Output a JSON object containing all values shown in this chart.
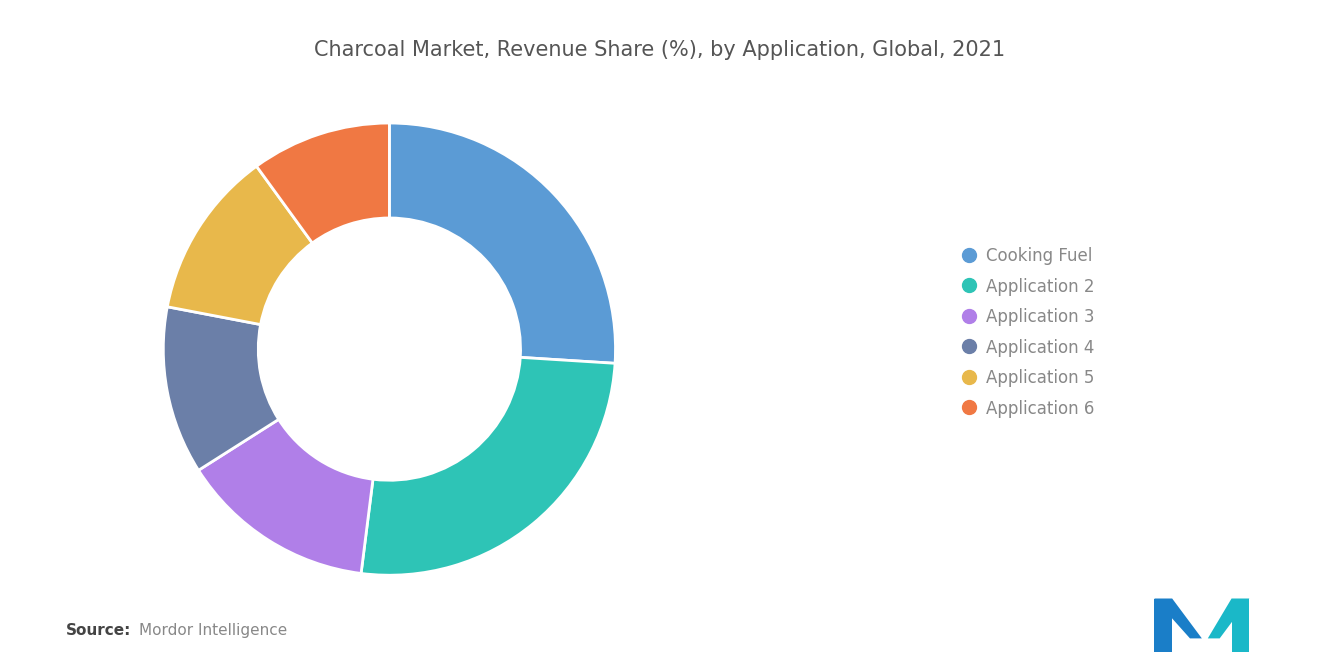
{
  "title": "Charcoal Market, Revenue Share (%), by Application, Global, 2021",
  "labels": [
    "Cooking Fuel",
    "Application 2",
    "Application 3",
    "Application 4",
    "Application 5",
    "Application 6"
  ],
  "values": [
    26,
    26,
    14,
    12,
    12,
    10
  ],
  "colors": [
    "#5B9BD5",
    "#2EC4B6",
    "#B07FE8",
    "#6B7FA8",
    "#E8B84B",
    "#F07843"
  ],
  "source_bold": "Source:",
  "source_text": "Mordor Intelligence",
  "background_color": "#FFFFFF",
  "title_fontsize": 15,
  "legend_fontsize": 12,
  "source_fontsize": 11,
  "logo_color1": "#1a7ec8",
  "logo_color2": "#1ab8c8"
}
